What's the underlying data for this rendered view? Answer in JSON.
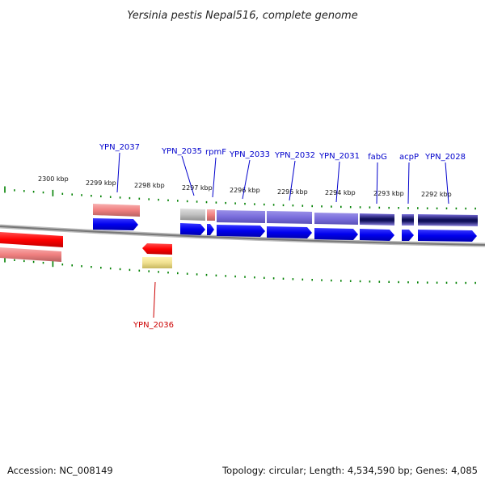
{
  "title": "Yersinia pestis Nepal516, complete genome",
  "footer": {
    "accession": "Accession: NC_008149",
    "summary": "Topology: circular; Length: 4,534,590 bp; Genes: 4,085"
  },
  "colors": {
    "plus_label": "#0000cc",
    "minus_label": "#cc0000",
    "cds_plus": "#0000ee",
    "cds_minus": "#ee0000",
    "tick": "#008000",
    "backbone": "#888888"
  },
  "ticks": [
    {
      "label": "2300 kbp"
    },
    {
      "label": "2299 kbp"
    },
    {
      "label": "2298 kbp"
    },
    {
      "label": "2297 kbp"
    },
    {
      "label": "2296 kbp"
    },
    {
      "label": "2295 kbp"
    },
    {
      "label": "2294 kbp"
    },
    {
      "label": "2293 kbp"
    },
    {
      "label": "2292 kbp"
    }
  ],
  "genes": [
    {
      "label": "YPN_2037",
      "strand": "+"
    },
    {
      "label": "YPN_2036",
      "strand": "-"
    },
    {
      "label": "YPN_2035",
      "strand": "+"
    },
    {
      "label": "rpmF",
      "strand": "+"
    },
    {
      "label": "YPN_2033",
      "strand": "+"
    },
    {
      "label": "YPN_2032",
      "strand": "+"
    },
    {
      "label": "YPN_2031",
      "strand": "+"
    },
    {
      "label": "fabG",
      "strand": "+"
    },
    {
      "label": "acpP",
      "strand": "+"
    },
    {
      "label": "YPN_2028",
      "strand": "+"
    }
  ]
}
